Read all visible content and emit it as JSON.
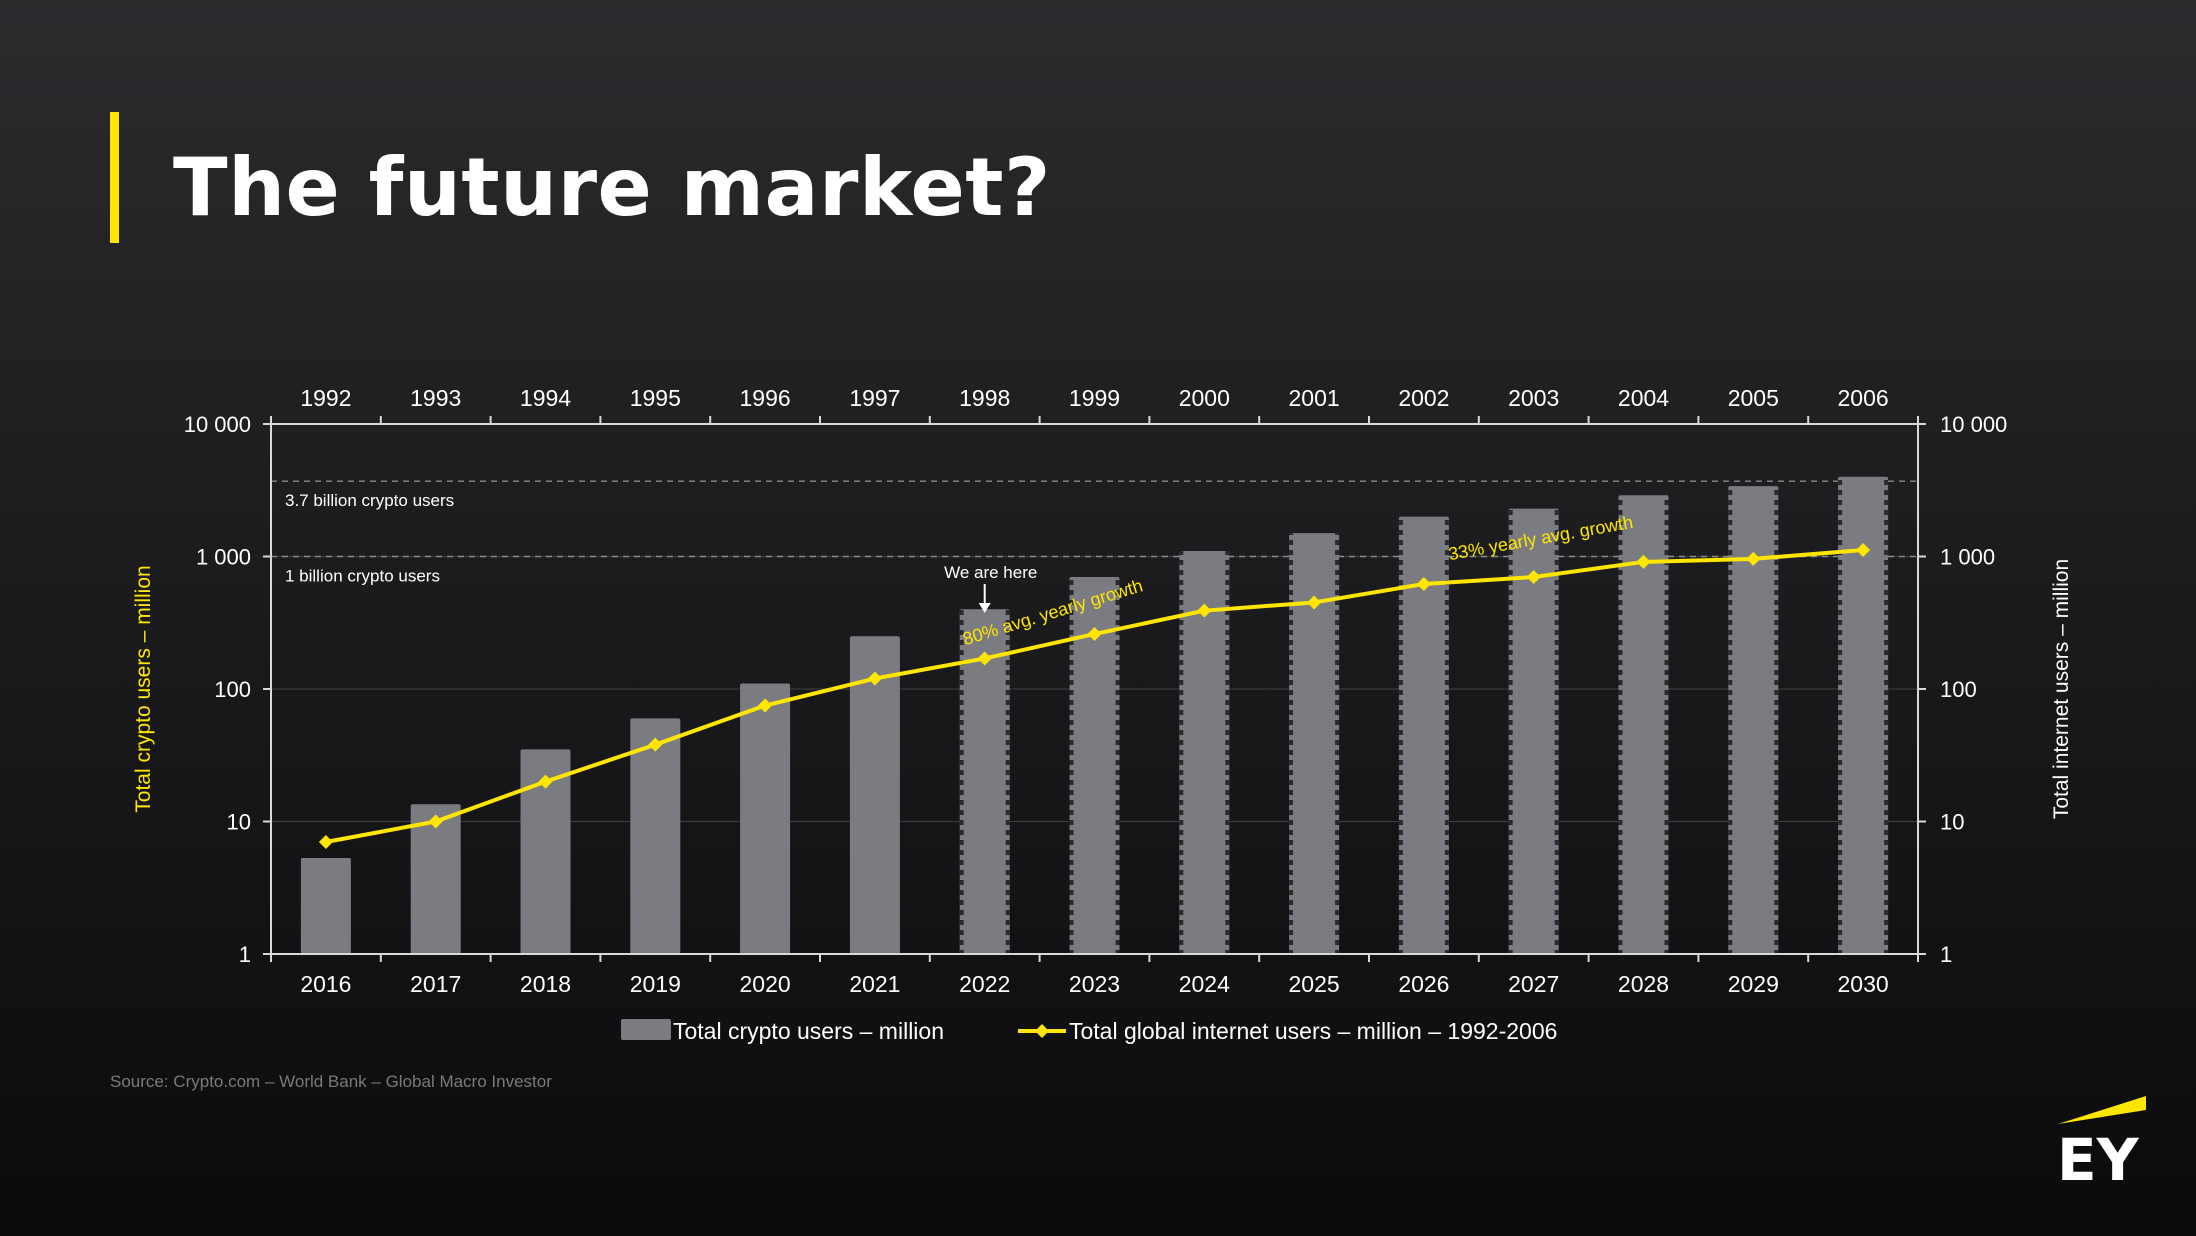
{
  "slide": {
    "title": "The future market?",
    "source": "Source: Crypto.com – World Bank – Global Macro Investor",
    "logo_text": "EY"
  },
  "colors": {
    "accent": "#FFE600",
    "bar": "#7b7b82",
    "line": "#FFE600",
    "background": "#1c1c1e",
    "text": "#ffffff"
  },
  "chart_data": {
    "type": "bar",
    "categories": [
      "2016",
      "2017",
      "2018",
      "2019",
      "2020",
      "2021",
      "2022",
      "2023",
      "2024",
      "2025",
      "2026",
      "2027",
      "2028",
      "2029",
      "2030"
    ],
    "top_categories": [
      "1992",
      "1993",
      "1994",
      "1995",
      "1996",
      "1997",
      "1998",
      "1999",
      "2000",
      "2001",
      "2002",
      "2003",
      "2004",
      "2005",
      "2006"
    ],
    "series": [
      {
        "name": "Total crypto users – million",
        "type": "bar",
        "axis": "left",
        "values": [
          5.3,
          13.5,
          35,
          60,
          110,
          250,
          400,
          700,
          1100,
          1500,
          2000,
          2300,
          2900,
          3400,
          4000
        ],
        "projected_from": "2022"
      },
      {
        "name": "Total global internet users – million – 1992-2006",
        "type": "line",
        "axis": "right",
        "values": [
          7,
          10,
          20,
          38,
          75,
          120,
          170,
          260,
          390,
          450,
          620,
          700,
          910,
          960,
          1120
        ]
      }
    ],
    "yscale": "log",
    "ylim": [
      1,
      10000
    ],
    "y_ticks": [
      "1",
      "10",
      "100",
      "1 000",
      "10 000"
    ],
    "y_tick_values": [
      1,
      10,
      100,
      1000,
      10000
    ],
    "ylabel": "Total crypto users – million",
    "y2label": "Total internet users – million",
    "reference_lines": [
      {
        "value": 3700,
        "label": "3.7 billion crypto users"
      },
      {
        "value": 1000,
        "label": "1 billion crypto users"
      }
    ],
    "annotations": [
      {
        "text": "We are here",
        "category": "2022"
      },
      {
        "text": "80% avg. yearly growth",
        "category": "2023"
      },
      {
        "text": "33% yearly avg. growth",
        "category": "2027"
      }
    ],
    "grid": true,
    "legend_position": "bottom-center"
  }
}
